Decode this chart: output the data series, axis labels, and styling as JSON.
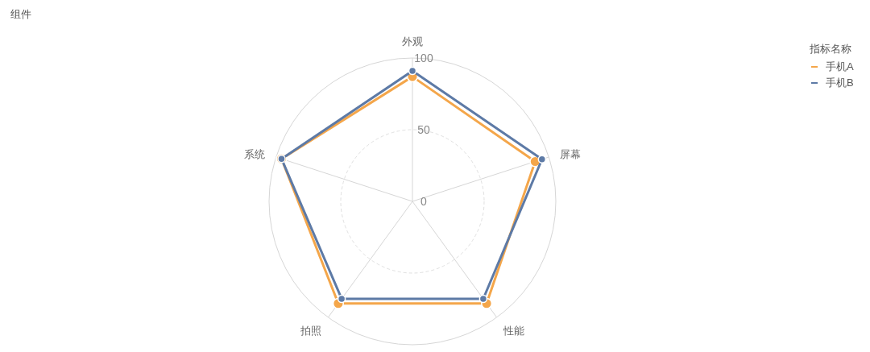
{
  "chart_data": {
    "type": "radar",
    "title": "组件",
    "legend_title": "指标名称",
    "categories": [
      "外观",
      "屏幕",
      "性能",
      "拍照",
      "系统"
    ],
    "series": [
      {
        "name": "手机A",
        "color": "#f4a64a",
        "values": [
          87,
          90,
          88,
          88,
          96
        ]
      },
      {
        "name": "手机B",
        "color": "#5d7aa6",
        "values": [
          91,
          95,
          84,
          84,
          96
        ]
      }
    ],
    "ylim": [
      0,
      100
    ],
    "yticks": [
      0,
      50,
      100
    ],
    "grid": true,
    "legend": "top right",
    "marker": "circle",
    "line_style": "solid"
  }
}
